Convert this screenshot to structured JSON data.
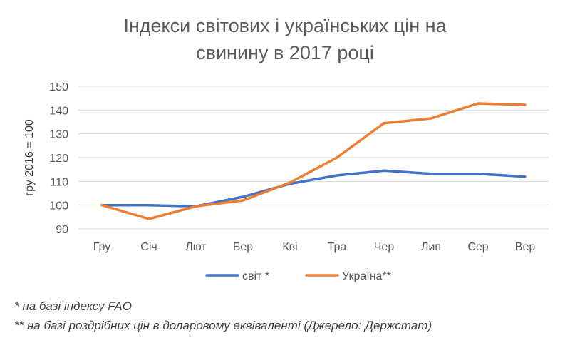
{
  "chart_data": {
    "type": "line",
    "title": [
      "Індекси світових і українських цін на",
      "свинину в 2017 році"
    ],
    "ylabel": "гру 2016 = 100",
    "xlabel": "",
    "categories": [
      "Гру",
      "Січ",
      "Лют",
      "Бер",
      "Кві",
      "Тра",
      "Чер",
      "Лип",
      "Сер",
      "Вер"
    ],
    "ylim": [
      90,
      150
    ],
    "yticks": [
      90,
      100,
      110,
      120,
      130,
      140,
      150
    ],
    "grid": true,
    "legend_position": "bottom",
    "series": [
      {
        "name": "світ *",
        "color": "#4472C4",
        "values": [
          100,
          100,
          99.5,
          103.5,
          109,
          112.5,
          114.5,
          113.2,
          113.2,
          112
        ]
      },
      {
        "name": "Україна**",
        "color": "#ED7D31",
        "values": [
          100,
          94.2,
          99.5,
          102,
          109.5,
          120,
          134.5,
          136.5,
          142.8,
          142.2
        ]
      }
    ]
  },
  "notes": {
    "note1": "* на базі індексу FAO",
    "note2": "** на базі роздрібних цін в доларовому еквіваленті (Джерело: Держстат)"
  }
}
